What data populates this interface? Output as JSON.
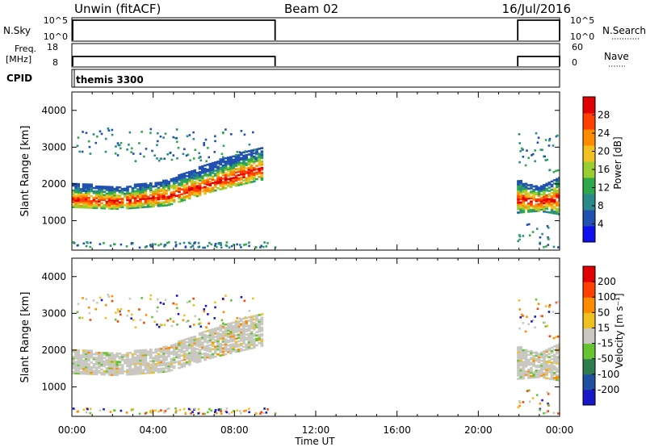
{
  "header": {
    "title": "Unwin (fitACF)",
    "beam": "Beam 02",
    "date": "16/Jul/2016"
  },
  "status_panels": {
    "nsky": {
      "label": "N.Sky",
      "ticks": [
        "10^5",
        "10^0"
      ],
      "right_label": "N.Search",
      "right_ticks": [
        "10^5",
        "10^0"
      ]
    },
    "freq": {
      "label_line1": "Freq.",
      "label_line2": "[MHz]",
      "ticks": [
        "18",
        "8"
      ],
      "right_label": "Nave",
      "right_ticks": [
        "60",
        "0"
      ]
    },
    "cpid": {
      "label": "CPID",
      "value": "themis 3300"
    },
    "on_intervals_hours": [
      [
        0.0,
        10.0
      ],
      [
        21.9,
        24.0
      ]
    ]
  },
  "chart_data": [
    {
      "type": "heatmap",
      "name": "power-panel",
      "ylabel": "Slant Range [km]",
      "yticks": [
        1000,
        2000,
        3000,
        4000
      ],
      "ylim": [
        200,
        4500
      ],
      "xlim": [
        0,
        24
      ],
      "colorbar": {
        "label": "Power [dB]",
        "ticks": [
          "28",
          "24",
          "20",
          "16",
          "12",
          "8",
          "4"
        ],
        "range": [
          0,
          32
        ],
        "colors": [
          "#1010ee",
          "#2050b0",
          "#2a8a8a",
          "#2ea84a",
          "#9acd32",
          "#f0c020",
          "#ff8c00",
          "#ff4000",
          "#e00000"
        ]
      },
      "bands": [
        {
          "t": [
            0.0,
            9.3
          ],
          "r0": [
            1350,
            1300,
            1400,
            1800,
            2100
          ],
          "r1": [
            2000,
            1900,
            2100,
            2600,
            3000
          ],
          "core": [
            1550,
            1500,
            1650,
            2000,
            2400
          ]
        },
        {
          "t": [
            21.9,
            24.0
          ],
          "r0": [
            1200,
            1250,
            1150
          ],
          "r1": [
            2100,
            1900,
            2200
          ],
          "core": [
            1550,
            1500,
            1600
          ]
        }
      ]
    },
    {
      "type": "heatmap",
      "name": "velocity-panel",
      "ylabel": "Slant Range [km]",
      "yticks": [
        1000,
        2000,
        3000,
        4000
      ],
      "ylim": [
        200,
        4500
      ],
      "xlim": [
        0,
        24
      ],
      "xticks": [
        "00:00",
        "04:00",
        "08:00",
        "12:00",
        "16:00",
        "20:00",
        "00:00"
      ],
      "xlabel": "Time UT",
      "colorbar": {
        "label": "Velocity [m s⁻¹]",
        "ticks": [
          "200",
          "100",
          "50",
          "15",
          "-15",
          "-50",
          "-100",
          "-200"
        ],
        "colors": [
          "#1818c8",
          "#2050a0",
          "#2e7d4e",
          "#66c432",
          "#c8c8c0",
          "#f0c020",
          "#ff8c00",
          "#ff4000",
          "#e00000"
        ]
      }
    }
  ]
}
